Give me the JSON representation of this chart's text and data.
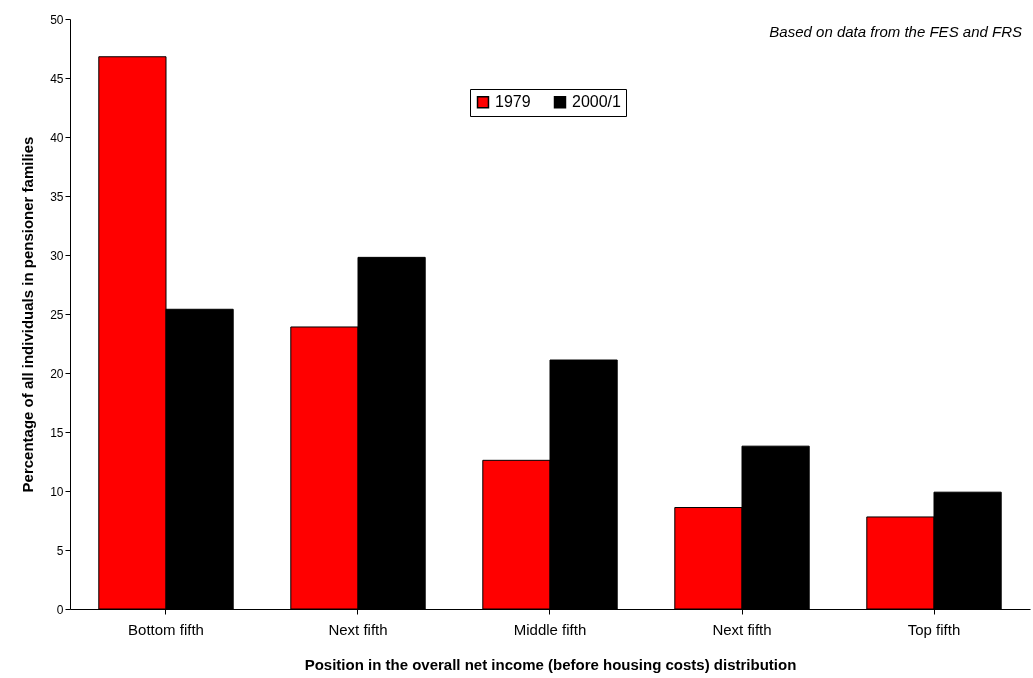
{
  "chart_data": {
    "type": "bar",
    "xlabel": "Position in the overall net income (before housing costs) distribution",
    "ylabel": "Percentage of all individuals in pensioner families",
    "categories": [
      "Bottom fifth",
      "Next fifth",
      "Middle fifth",
      "Next fifth",
      "Top fifth"
    ],
    "series": [
      {
        "name": "1979",
        "color": "#ff0000",
        "values": [
          46.8,
          23.9,
          12.6,
          8.6,
          7.8
        ]
      },
      {
        "name": "2000/1",
        "color": "#000000",
        "values": [
          25.4,
          29.8,
          21.1,
          13.8,
          9.9
        ]
      }
    ],
    "ylim": [
      0,
      50
    ],
    "yticks": [
      0,
      5,
      10,
      15,
      20,
      25,
      30,
      35,
      40,
      45,
      50
    ],
    "grid": false,
    "legend": "top",
    "annotations": [
      "Based on data from the FES and FRS"
    ]
  }
}
